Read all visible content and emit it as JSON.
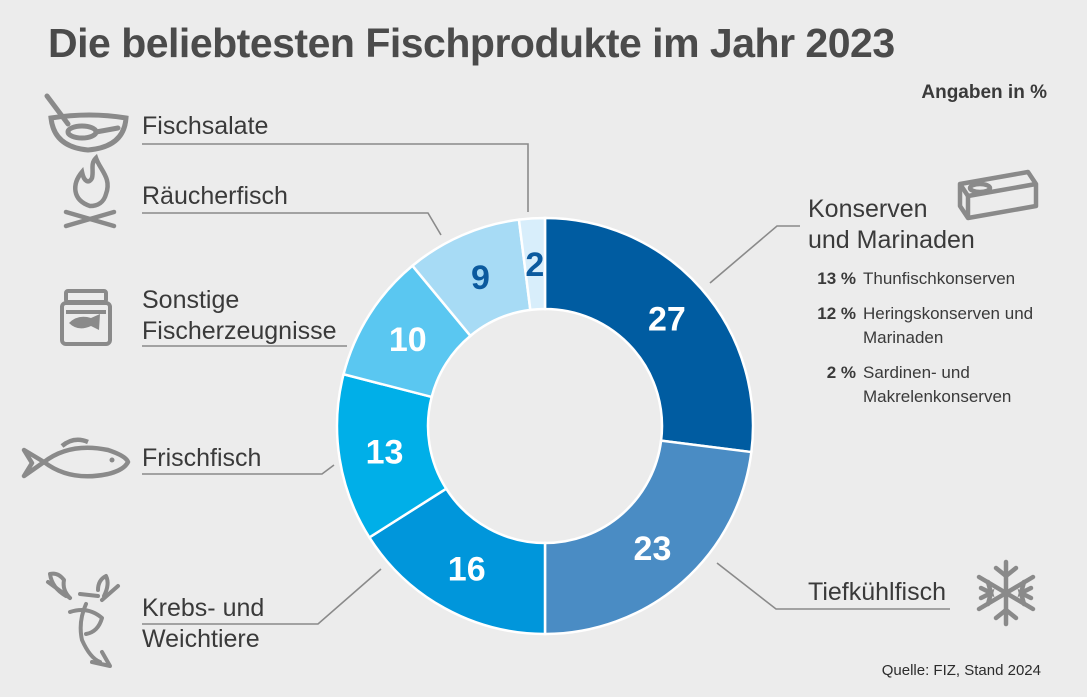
{
  "title": "Die beliebtesten Fischprodukte im Jahr 2023",
  "unit_note": "Angaben in %",
  "source": "Quelle:  FIZ, Stand 2024",
  "chart_data": {
    "type": "pie",
    "donut": true,
    "categories": [
      "Konserven und Marinaden",
      "Tiefkühlfisch",
      "Krebs- und Weichtiere",
      "Frischfisch",
      "Sonstige Fischerzeugnisse",
      "Räucherfisch",
      "Fischsalate"
    ],
    "values": [
      27,
      23,
      16,
      13,
      10,
      9,
      2
    ],
    "value_labels": [
      "27",
      "23",
      "16",
      "13",
      "10",
      "9",
      "2"
    ],
    "colors": [
      "#005ca1",
      "#4a8cc4",
      "#0096db",
      "#00afe8",
      "#5ac7f1",
      "#a7dbf5",
      "#d8eefb"
    ],
    "label_colors": [
      "#ffffff",
      "#ffffff",
      "#ffffff",
      "#ffffff",
      "#ffffff",
      "#0b5a9e",
      "#0b5a9e"
    ]
  },
  "labels": {
    "konserven": [
      "Konserven",
      "und Marinaden"
    ],
    "tiefkuehl": "Tiefkühlfisch",
    "krebs": [
      "Krebs- und",
      "Weichtiere"
    ],
    "frisch": "Frischfisch",
    "sonstige": [
      "Sonstige",
      "Fischerzeugnisse"
    ],
    "raeucher": "Räucherfisch",
    "salate": "Fischsalate"
  },
  "konserven_breakdown": [
    {
      "pct": "13 %",
      "text": "Thunfischkonserven"
    },
    {
      "pct": "12 %",
      "text": "Heringskonserven und Marinaden"
    },
    {
      "pct": "2 %",
      "text": "Sardinen- und Makrelenkonserven"
    }
  ],
  "icons": {
    "salate": "salad-bowl-icon",
    "raeucher": "campfire-icon",
    "sonstige": "fish-jar-icon",
    "frisch": "fish-icon",
    "krebs": "crayfish-icon",
    "konserven": "tin-can-icon",
    "tiefkuehl": "snowflake-icon"
  },
  "accent_colors": {
    "icon_gray": "#8a8a8a",
    "leader_gray": "#8a8a8a"
  }
}
